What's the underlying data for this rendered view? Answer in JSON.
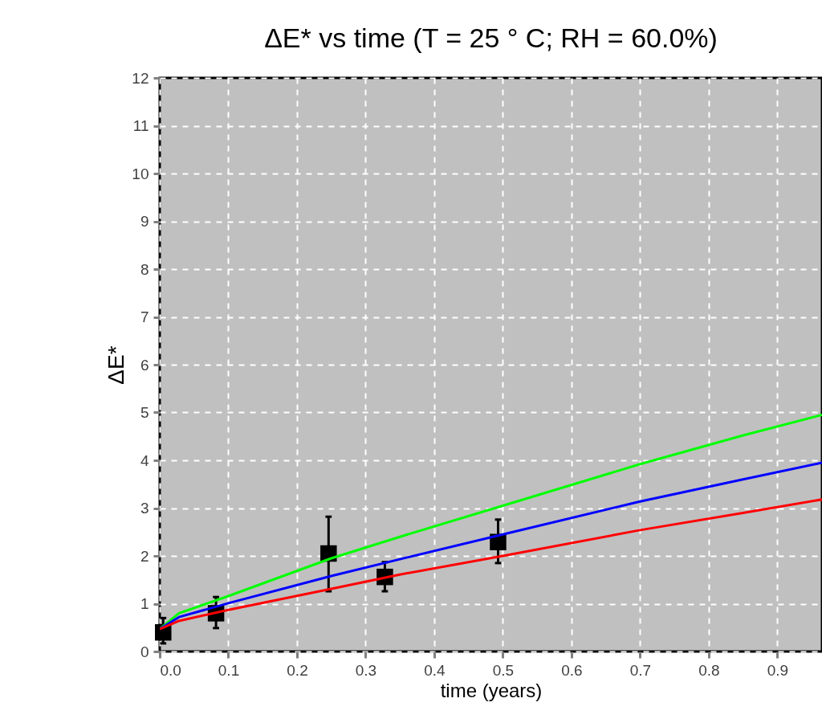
{
  "chart_data": {
    "type": "line",
    "title": "ΔE* vs time (T = 25 ° C; RH = 60.0%)",
    "xlabel": "time (years)",
    "ylabel": "ΔE*",
    "xlim": [
      0,
      0.965
    ],
    "ylim": [
      0,
      12
    ],
    "xticks": [
      {
        "value": 0,
        "label": "0.0"
      },
      0.1,
      0.2,
      0.3,
      0.4,
      0.5,
      0.6,
      0.7,
      0.8,
      0.9
    ],
    "yticks": [
      0,
      1,
      2,
      3,
      4,
      5,
      6,
      7,
      8,
      9,
      10,
      11,
      12
    ],
    "grid": true,
    "series": [
      {
        "color": "#00ff00",
        "x": [
          0,
          0.028,
          0.1,
          0.25,
          0.35,
          0.5,
          0.7,
          0.85,
          0.965
        ],
        "values": [
          0.47,
          0.8,
          1.16,
          1.95,
          2.4,
          3.05,
          3.92,
          4.52,
          4.95
        ]
      },
      {
        "color": "#0000ff",
        "x": [
          0,
          0.028,
          0.1,
          0.25,
          0.35,
          0.5,
          0.7,
          0.85,
          0.965
        ],
        "values": [
          0.47,
          0.72,
          1.01,
          1.58,
          1.93,
          2.45,
          3.14,
          3.6,
          3.95
        ]
      },
      {
        "color": "#ff0000",
        "x": [
          0,
          0.028,
          0.1,
          0.25,
          0.35,
          0.5,
          0.7,
          0.85,
          0.965
        ],
        "values": [
          0.47,
          0.64,
          0.87,
          1.31,
          1.61,
          2.0,
          2.54,
          2.9,
          3.18
        ]
      },
      {
        "type": "scatter",
        "marker": "square",
        "color": "#000000",
        "x": [
          0.005,
          0.082,
          0.246,
          0.328,
          0.493
        ],
        "values": [
          0.4,
          0.8,
          2.05,
          1.56,
          2.29
        ],
        "errors": [
          [
            0.17,
            0.7
          ],
          [
            0.49,
            1.14
          ],
          [
            1.26,
            2.82
          ],
          [
            1.26,
            1.87
          ],
          [
            1.85,
            2.76
          ]
        ]
      }
    ]
  }
}
